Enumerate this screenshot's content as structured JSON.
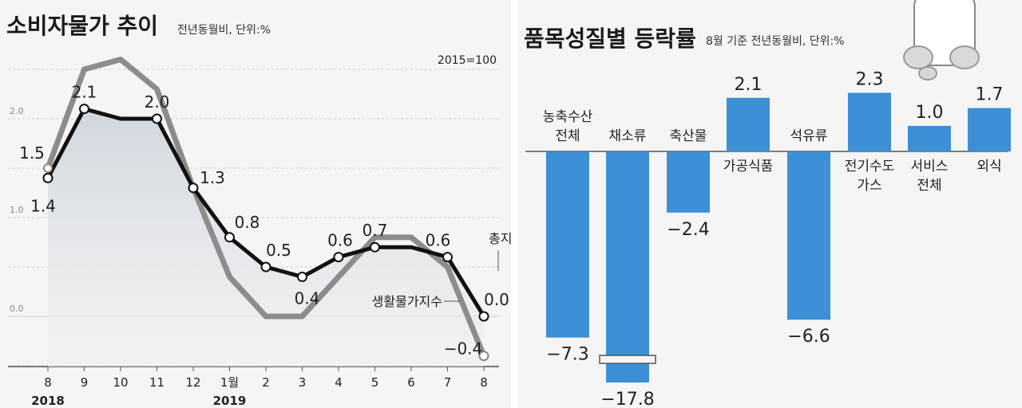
{
  "chart_data": [
    {
      "type": "line",
      "title": "소비자물가 추이",
      "subtitle": "전년동월비, 단위:%",
      "note": "2015=100",
      "categories": [
        "8",
        "9",
        "10",
        "11",
        "12",
        "1월",
        "2",
        "3",
        "4",
        "5",
        "6",
        "7",
        "8"
      ],
      "year_labels": [
        {
          "index": 0,
          "label": "2018"
        },
        {
          "index": 5,
          "label": "2019"
        }
      ],
      "yticks": [
        "0.0",
        "1.0",
        "2.0"
      ],
      "ylim": [
        -0.5,
        2.8
      ],
      "series": [
        {
          "name": "총지수",
          "color": "#111111",
          "values": [
            1.4,
            2.1,
            2.0,
            2.0,
            1.3,
            0.8,
            0.5,
            0.4,
            0.6,
            0.7,
            0.7,
            0.6,
            0.0
          ],
          "labels": [
            "1.4",
            "2.1",
            "",
            "2.0",
            "1.3",
            "0.8",
            "0.5",
            "0.4",
            "0.6",
            "0.7",
            "",
            "0.6",
            "0.0"
          ]
        },
        {
          "name": "생활물가지수",
          "color": "#8c8c8c",
          "values": [
            1.5,
            2.5,
            2.6,
            2.3,
            1.3,
            0.4,
            0.0,
            0.0,
            0.4,
            0.8,
            0.8,
            0.5,
            -0.4
          ],
          "labels": [
            "1.5",
            "",
            "",
            "",
            "",
            "",
            "",
            "",
            "",
            "",
            "",
            "",
            "-0.4"
          ]
        }
      ]
    },
    {
      "type": "bar",
      "title": "품목성질별 등락률",
      "subtitle": "8월 기준 전년동월비, 단위:%",
      "categories": [
        "농축수산\n전체",
        "채소류",
        "축산물",
        "가공식품",
        "석유류",
        "전기수도\n가스",
        "서비스\n전체",
        "외식"
      ],
      "values": [
        -7.3,
        -17.8,
        -2.4,
        2.1,
        -6.6,
        2.3,
        1.0,
        1.7
      ],
      "value_labels": [
        "-7.3",
        "-17.8",
        "-2.4",
        "2.1",
        "-6.6",
        "2.3",
        "1.0",
        "1.7"
      ],
      "color": "#3d8fd6"
    }
  ]
}
